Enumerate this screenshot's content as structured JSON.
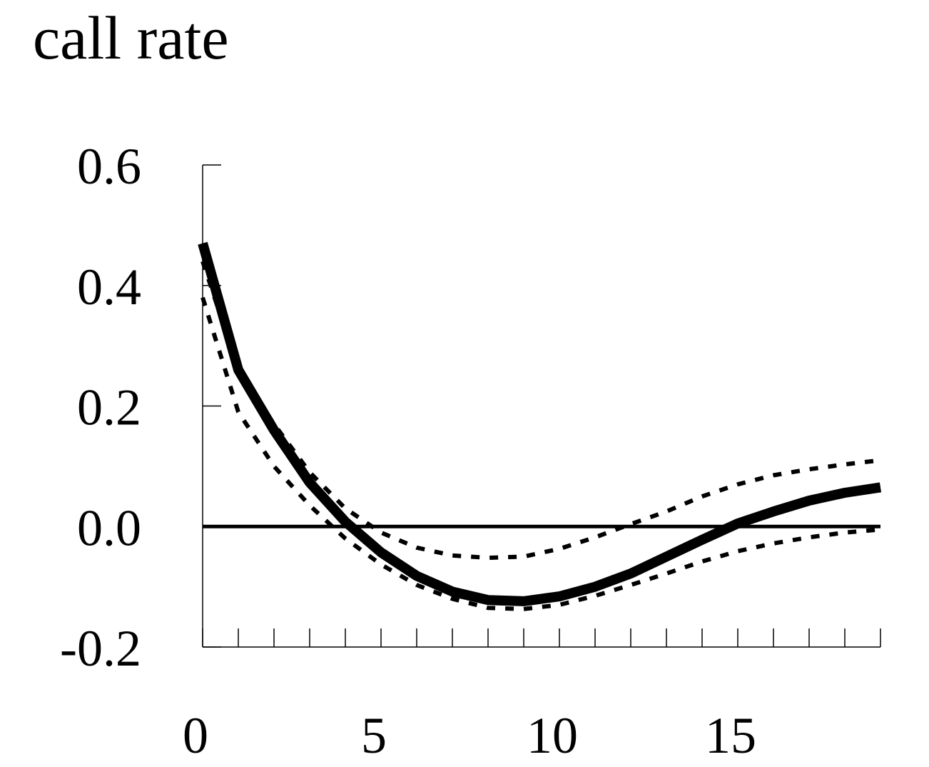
{
  "chart_data": {
    "type": "line",
    "title": "call rate",
    "xlabel": "",
    "ylabel": "",
    "xlim": [
      0,
      19
    ],
    "ylim": [
      -0.2,
      0.6
    ],
    "x_ticks": [
      0,
      5,
      10,
      15
    ],
    "x_tick_labels": [
      "0",
      "5",
      "10",
      "15"
    ],
    "y_ticks": [
      -0.2,
      0.0,
      0.2,
      0.4,
      0.6
    ],
    "y_tick_labels": [
      "-0.2",
      "0.0",
      "0.2",
      "0.4",
      "0.6"
    ],
    "x_minor_ticks": [
      0,
      1,
      2,
      3,
      4,
      5,
      6,
      7,
      8,
      9,
      10,
      11,
      12,
      13,
      14,
      15,
      16,
      17,
      18,
      19
    ],
    "grid": false,
    "zero_line": true,
    "x": [
      0,
      1,
      2,
      3,
      4,
      5,
      6,
      7,
      8,
      9,
      10,
      11,
      12,
      13,
      14,
      15,
      16,
      17,
      18,
      19
    ],
    "series": [
      {
        "style": "solid-thick",
        "color": "#000000",
        "values": [
          0.47,
          0.26,
          0.16,
          0.073,
          0.008,
          -0.043,
          -0.082,
          -0.108,
          -0.122,
          -0.124,
          -0.116,
          -0.1,
          -0.078,
          -0.05,
          -0.022,
          0.005,
          0.025,
          0.043,
          0.056,
          0.065
        ]
      },
      {
        "style": "dotted",
        "color": "#000000",
        "values": [
          0.44,
          0.26,
          0.17,
          0.09,
          0.03,
          -0.01,
          -0.035,
          -0.048,
          -0.052,
          -0.05,
          -0.037,
          -0.018,
          0.004,
          0.025,
          0.05,
          0.07,
          0.085,
          0.095,
          0.103,
          0.11
        ]
      },
      {
        "style": "dotted",
        "color": "#000000",
        "values": [
          0.38,
          0.19,
          0.1,
          0.035,
          -0.02,
          -0.063,
          -0.097,
          -0.12,
          -0.135,
          -0.137,
          -0.13,
          -0.115,
          -0.097,
          -0.078,
          -0.058,
          -0.041,
          -0.028,
          -0.018,
          -0.01,
          -0.005
        ]
      }
    ]
  }
}
